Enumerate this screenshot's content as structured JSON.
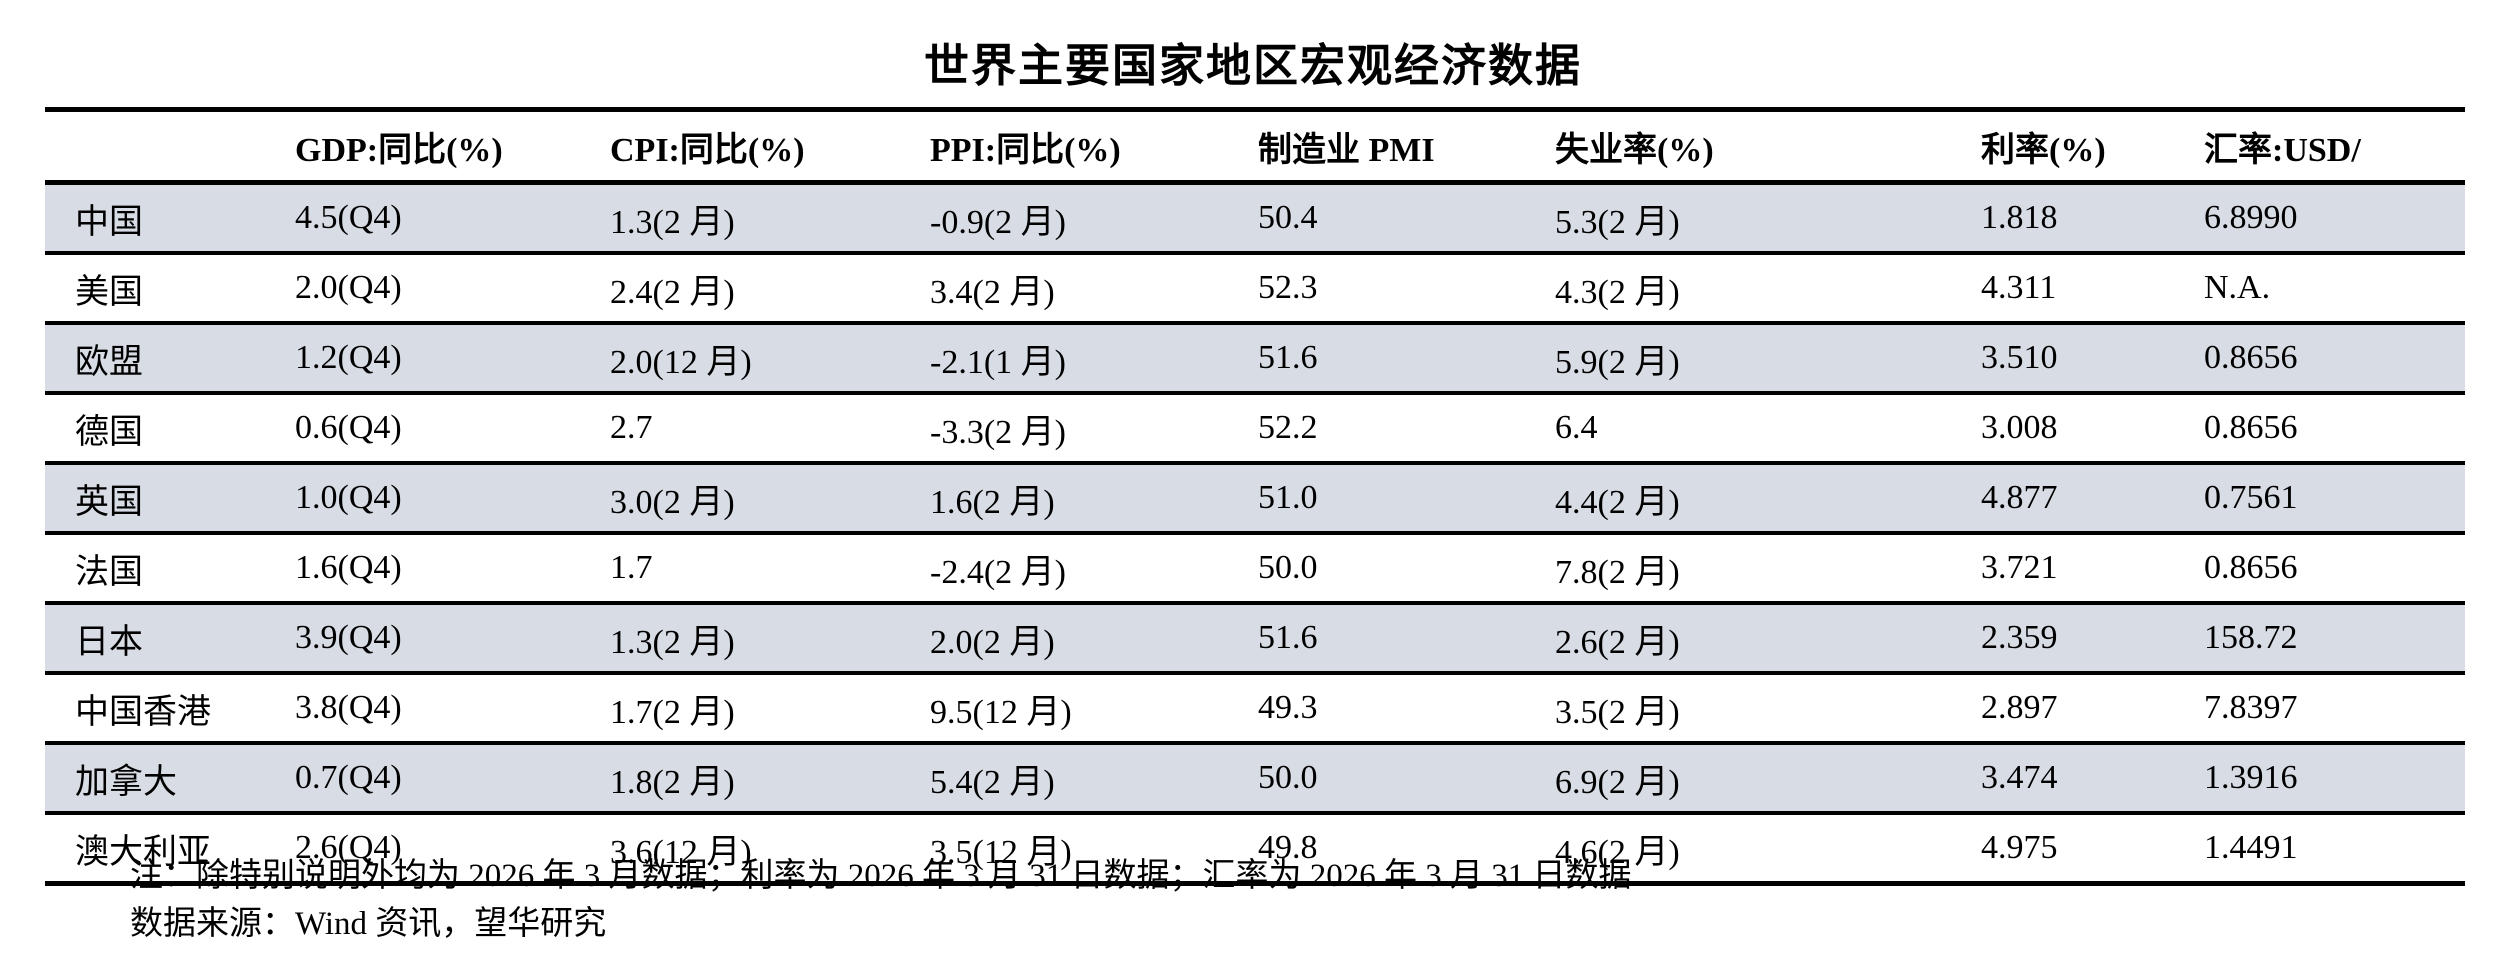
{
  "page": {
    "title": "世界主要国家地区宏观经济数据"
  },
  "table": {
    "stripe_color": "#d8dce4",
    "border_color": "#000000",
    "columns": [
      "",
      "GDP:同比(%)",
      "CPI:同比(%)",
      "PPI:同比(%)",
      "制造业 PMI",
      "失业率(%)",
      "利率(%)",
      "汇率:USD/"
    ],
    "rows": [
      {
        "cells": [
          "中国",
          "4.5(Q4)",
          "1.3(2 月)",
          "-0.9(2 月)",
          "50.4",
          "5.3(2 月)",
          "1.818",
          "6.8990"
        ]
      },
      {
        "cells": [
          "美国",
          "2.0(Q4)",
          "2.4(2 月)",
          "3.4(2 月)",
          "52.3",
          "4.3(2 月)",
          "4.311",
          "N.A."
        ]
      },
      {
        "cells": [
          "欧盟",
          "1.2(Q4)",
          "2.0(12 月)",
          "-2.1(1 月)",
          "51.6",
          "5.9(2 月)",
          "3.510",
          "0.8656"
        ]
      },
      {
        "cells": [
          "德国",
          "0.6(Q4)",
          "2.7",
          "-3.3(2 月)",
          "52.2",
          "6.4",
          "3.008",
          "0.8656"
        ]
      },
      {
        "cells": [
          "英国",
          "1.0(Q4)",
          "3.0(2 月)",
          "1.6(2 月)",
          "51.0",
          "4.4(2 月)",
          "4.877",
          "0.7561"
        ]
      },
      {
        "cells": [
          "法国",
          "1.6(Q4)",
          "1.7",
          "-2.4(2 月)",
          "50.0",
          "7.8(2 月)",
          "3.721",
          "0.8656"
        ]
      },
      {
        "cells": [
          "日本",
          "3.9(Q4)",
          "1.3(2 月)",
          "2.0(2 月)",
          "51.6",
          "2.6(2 月)",
          "2.359",
          "158.72"
        ]
      },
      {
        "cells": [
          "中国香港",
          "3.8(Q4)",
          "1.7(2 月)",
          "9.5(12 月)",
          "49.3",
          "3.5(2 月)",
          "2.897",
          "7.8397"
        ]
      },
      {
        "cells": [
          "加拿大",
          "0.7(Q4)",
          "1.8(2 月)",
          "5.4(2 月)",
          "50.0",
          "6.9(2 月)",
          "3.474",
          "1.3916"
        ]
      },
      {
        "cells": [
          "澳大利亚",
          "2.6(Q4)",
          "3.6(12 月)",
          "3.5(12 月)",
          "49.8",
          "4.6(2 月)",
          "4.975",
          "1.4491"
        ]
      }
    ]
  },
  "notes": {
    "line1": "注：除特别说明外均为 2026 年 3 月数据；利率为 2026 年 3 月 31 日数据；汇率为 2026 年 3 月 31 日数据",
    "line2": "数据来源：Wind 资讯，望华研究"
  }
}
